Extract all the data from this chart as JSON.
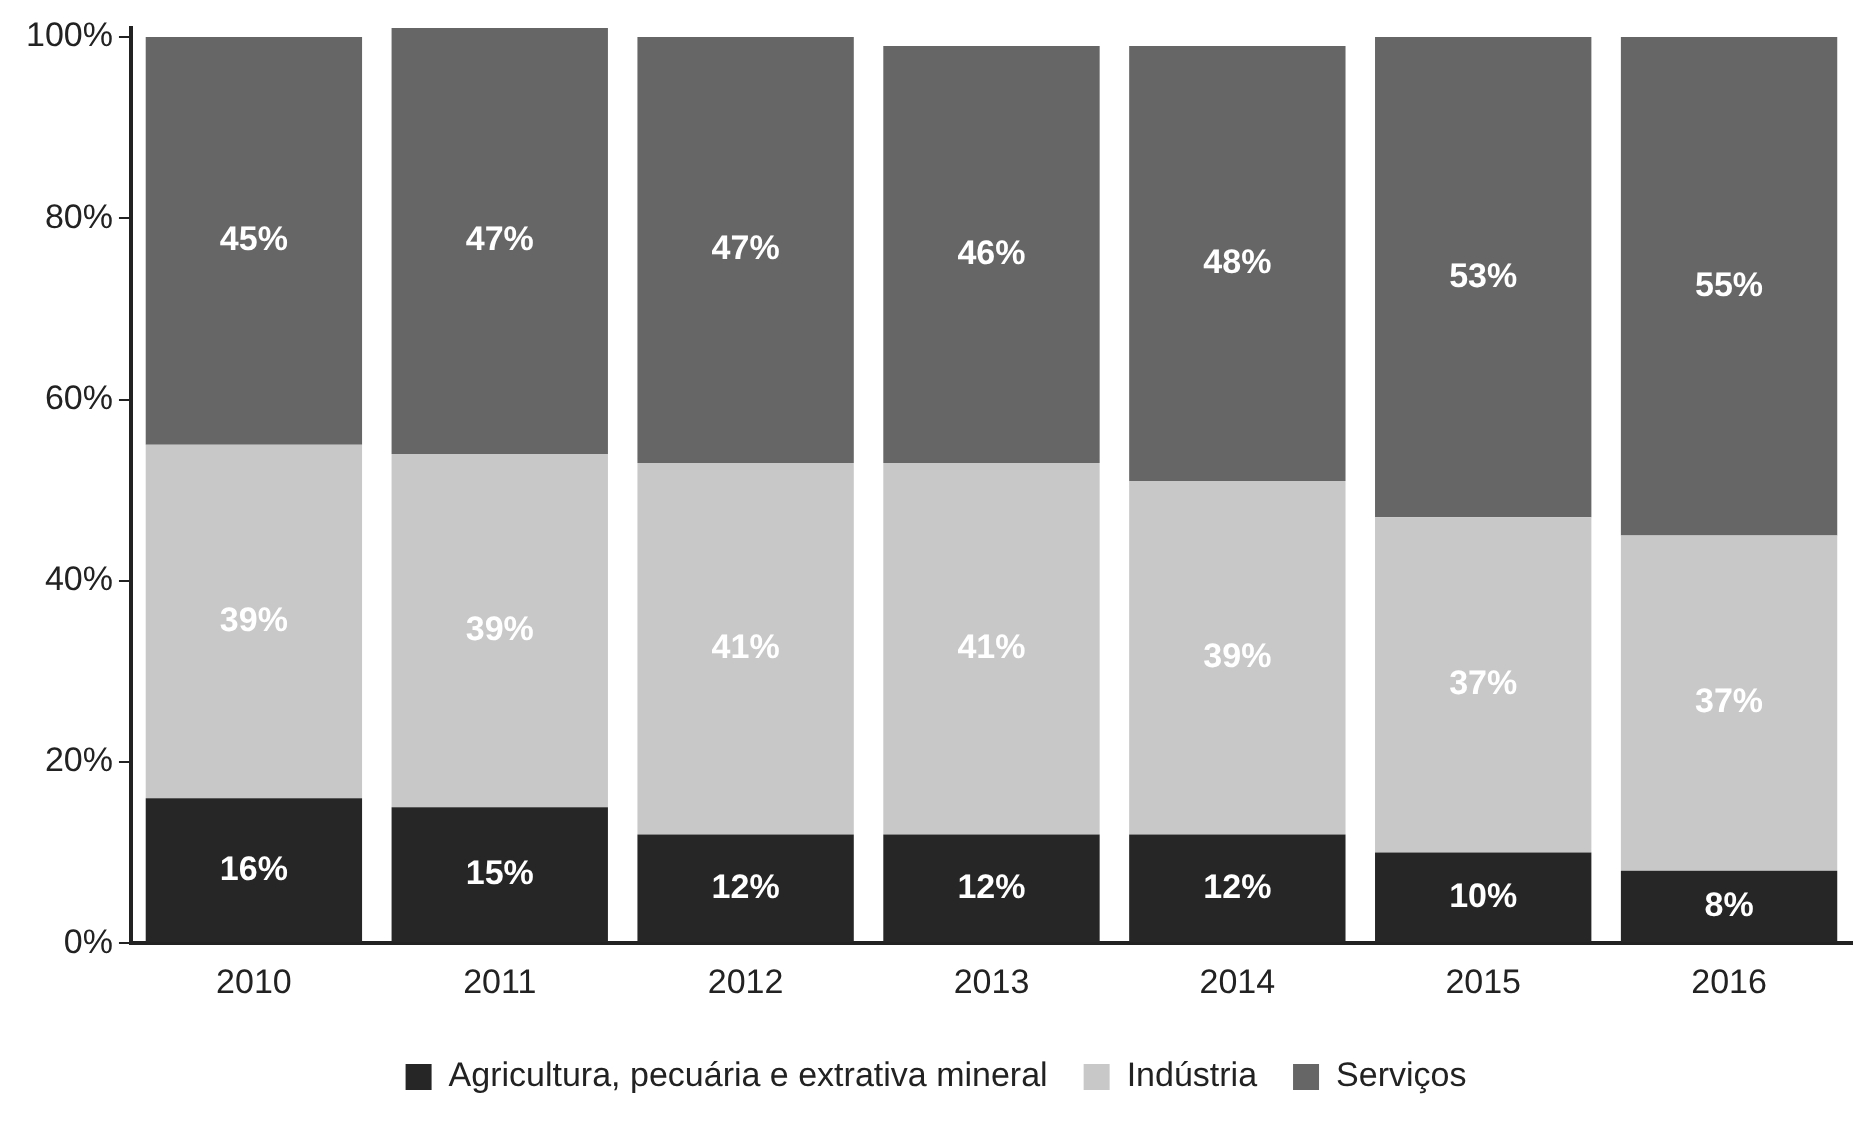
{
  "chart_data": {
    "type": "bar",
    "stacked": true,
    "categories": [
      "2010",
      "2011",
      "2012",
      "2013",
      "2014",
      "2015",
      "2016"
    ],
    "series": [
      {
        "name": "Agricultura, pecuária e extrativa mineral",
        "color": "#262626",
        "values": [
          16,
          15,
          12,
          12,
          12,
          10,
          8
        ],
        "value_labels": [
          "16%",
          "15%",
          "12%",
          "12%",
          "12%",
          "10%",
          "8%"
        ]
      },
      {
        "name": "Indústria",
        "color": "#c8c8c8",
        "values": [
          39,
          39,
          41,
          41,
          39,
          37,
          37
        ],
        "value_labels": [
          "39%",
          "39%",
          "41%",
          "41%",
          "39%",
          "37%",
          "37%"
        ]
      },
      {
        "name": "Serviços",
        "color": "#666666",
        "values": [
          45,
          47,
          47,
          46,
          48,
          53,
          55
        ],
        "value_labels": [
          "45%",
          "47%",
          "47%",
          "46%",
          "48%",
          "53%",
          "55%"
        ]
      }
    ],
    "ylim": [
      0,
      101
    ],
    "yticks": [
      {
        "value": 0,
        "label": "0%"
      },
      {
        "value": 20,
        "label": "20%"
      },
      {
        "value": 40,
        "label": "40%"
      },
      {
        "value": 60,
        "label": "60%"
      },
      {
        "value": 80,
        "label": "80%"
      },
      {
        "value": 100,
        "label": "100%"
      }
    ],
    "grid": false,
    "legend": "bottom"
  }
}
